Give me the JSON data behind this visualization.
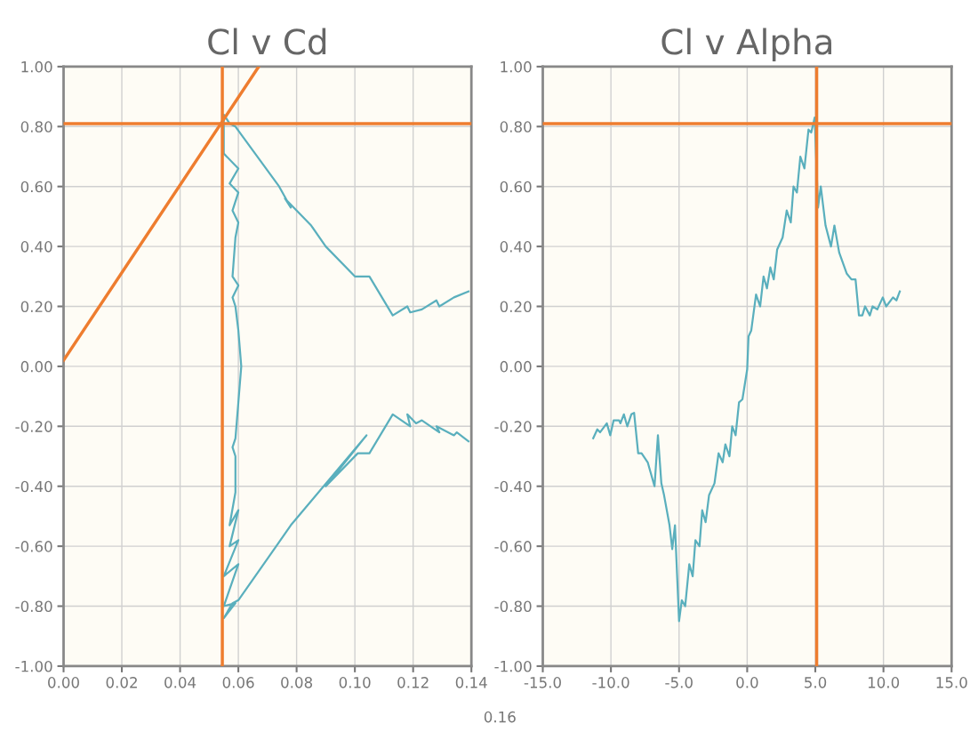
{
  "chart_data": [
    {
      "type": "line",
      "title": "Cl v Cd",
      "xlim": [
        0,
        0.14
      ],
      "ylim": [
        -1,
        1
      ],
      "xticks": [
        {
          "value": 0,
          "label": "0.00"
        },
        {
          "value": 0.02,
          "label": "0.02"
        },
        {
          "value": 0.04,
          "label": "0.04"
        },
        {
          "value": 0.06,
          "label": "0.06"
        },
        {
          "value": 0.08,
          "label": "0.08"
        },
        {
          "value": 0.1,
          "label": "0.10"
        },
        {
          "value": 0.12,
          "label": "0.12"
        },
        {
          "value": 0.14,
          "label": "0.14"
        }
      ],
      "yticks": [
        {
          "value": -1,
          "label": "-1.00"
        },
        {
          "value": -0.8,
          "label": "-0.80"
        },
        {
          "value": -0.6,
          "label": "-0.60"
        },
        {
          "value": -0.4,
          "label": "-0.40"
        },
        {
          "value": -0.2,
          "label": "-0.20"
        },
        {
          "value": 0,
          "label": "0.00"
        },
        {
          "value": 0.2,
          "label": "0.20"
        },
        {
          "value": 0.4,
          "label": "0.40"
        },
        {
          "value": 0.6,
          "label": "0.60"
        },
        {
          "value": 0.8,
          "label": "0.80"
        },
        {
          "value": 1,
          "label": "1.00"
        }
      ],
      "grid": true,
      "marker": "none",
      "line_style": "solid",
      "series": [
        {
          "color": "#5aafbd",
          "x": [
            0.139,
            0.135,
            0.134,
            0.128,
            0.129,
            0.123,
            0.121,
            0.118,
            0.119,
            0.113,
            0.105,
            0.101,
            0.09,
            0.104,
            0.078,
            0.073,
            0.06,
            0.058,
            0.055,
            0.059,
            0.055,
            0.06,
            0.055,
            0.06,
            0.057,
            0.06,
            0.057,
            0.059,
            0.059,
            0.058,
            0.059,
            0.06,
            0.061,
            0.06,
            0.059,
            0.058,
            0.06,
            0.058,
            0.059,
            0.06,
            0.058,
            0.06,
            0.057,
            0.06,
            0.055,
            0.055,
            0.055,
            0.057,
            0.059,
            0.074,
            0.078,
            0.076,
            0.085,
            0.09,
            0.1,
            0.105,
            0.113,
            0.118,
            0.119,
            0.123,
            0.128,
            0.129,
            0.134,
            0.139
          ],
          "values": [
            -0.25,
            -0.22,
            -0.23,
            -0.2,
            -0.22,
            -0.18,
            -0.19,
            -0.16,
            -0.2,
            -0.16,
            -0.29,
            -0.29,
            -0.4,
            -0.23,
            -0.53,
            -0.6,
            -0.78,
            -0.79,
            -0.84,
            -0.79,
            -0.8,
            -0.66,
            -0.7,
            -0.58,
            -0.6,
            -0.48,
            -0.53,
            -0.42,
            -0.3,
            -0.27,
            -0.24,
            -0.12,
            0.0,
            0.12,
            0.2,
            0.23,
            0.27,
            0.3,
            0.43,
            0.48,
            0.52,
            0.58,
            0.61,
            0.66,
            0.71,
            0.8,
            0.84,
            0.81,
            0.8,
            0.6,
            0.53,
            0.56,
            0.47,
            0.4,
            0.3,
            0.3,
            0.17,
            0.2,
            0.18,
            0.19,
            0.22,
            0.2,
            0.23,
            0.25
          ]
        },
        {
          "color": "#ee7d2f",
          "x": [
            0,
            0.067
          ],
          "values": [
            0.02,
            1.0
          ]
        }
      ],
      "ref_lines": [
        {
          "axis": "y",
          "value": 0.81,
          "color": "#ee7d2f"
        },
        {
          "axis": "x",
          "value": 0.0545,
          "color": "#ee7d2f"
        }
      ],
      "annotations": [
        "0.16"
      ]
    },
    {
      "type": "line",
      "title": "Cl v Alpha",
      "xlim": [
        -15,
        15
      ],
      "ylim": [
        -1,
        1
      ],
      "xticks": [
        {
          "value": -15,
          "label": "-15.0"
        },
        {
          "value": -10,
          "label": "-10.0"
        },
        {
          "value": -5,
          "label": "-5.0"
        },
        {
          "value": 0,
          "label": "0.0"
        },
        {
          "value": 5,
          "label": "5.0"
        },
        {
          "value": 10,
          "label": "10.0"
        },
        {
          "value": 15,
          "label": "15.0"
        }
      ],
      "yticks": [
        {
          "value": -1,
          "label": "-1.00"
        },
        {
          "value": -0.8,
          "label": "-0.80"
        },
        {
          "value": -0.6,
          "label": "-0.60"
        },
        {
          "value": -0.4,
          "label": "-0.40"
        },
        {
          "value": -0.2,
          "label": "-0.20"
        },
        {
          "value": 0,
          "label": "0.00"
        },
        {
          "value": 0.2,
          "label": "0.20"
        },
        {
          "value": 0.4,
          "label": "0.40"
        },
        {
          "value": 0.6,
          "label": "0.60"
        },
        {
          "value": 0.8,
          "label": "0.80"
        },
        {
          "value": 1,
          "label": "1.00"
        }
      ],
      "grid": true,
      "marker": "none",
      "line_style": "solid",
      "series": [
        {
          "color": "#5aafbd",
          "x": [
            -11.3,
            -11.0,
            -10.8,
            -10.3,
            -10.05,
            -9.8,
            -9.4,
            -9.3,
            -9.05,
            -8.8,
            -8.5,
            -8.3,
            -8.0,
            -7.75,
            -7.3,
            -6.8,
            -6.55,
            -6.3,
            -6.1,
            -5.7,
            -5.5,
            -5.3,
            -5.0,
            -4.8,
            -4.55,
            -4.25,
            -4.0,
            -3.8,
            -3.5,
            -3.3,
            -3.05,
            -2.8,
            -2.4,
            -2.1,
            -1.8,
            -1.6,
            -1.3,
            -1.1,
            -0.85,
            -0.6,
            -0.35,
            0.0,
            0.1,
            0.3,
            0.65,
            0.95,
            1.2,
            1.45,
            1.7,
            1.95,
            2.2,
            2.6,
            2.9,
            3.2,
            3.4,
            3.65,
            3.9,
            4.2,
            4.5,
            4.7,
            4.95,
            5.2,
            5.4,
            5.75,
            6.15,
            6.4,
            6.75,
            7.3,
            7.65,
            7.95,
            8.2,
            8.45,
            8.65,
            9.0,
            9.2,
            9.55,
            9.95,
            10.2,
            10.7,
            10.95,
            11.2
          ],
          "values": [
            -0.24,
            -0.21,
            -0.22,
            -0.19,
            -0.23,
            -0.18,
            -0.18,
            -0.19,
            -0.16,
            -0.2,
            -0.16,
            -0.155,
            -0.29,
            -0.29,
            -0.32,
            -0.4,
            -0.23,
            -0.39,
            -0.43,
            -0.53,
            -0.61,
            -0.53,
            -0.85,
            -0.78,
            -0.8,
            -0.66,
            -0.7,
            -0.58,
            -0.6,
            -0.48,
            -0.52,
            -0.43,
            -0.39,
            -0.29,
            -0.32,
            -0.26,
            -0.3,
            -0.2,
            -0.23,
            -0.12,
            -0.11,
            -0.01,
            0.1,
            0.12,
            0.24,
            0.2,
            0.3,
            0.26,
            0.33,
            0.29,
            0.39,
            0.43,
            0.52,
            0.48,
            0.6,
            0.58,
            0.7,
            0.66,
            0.79,
            0.78,
            0.83,
            0.53,
            0.6,
            0.47,
            0.4,
            0.47,
            0.38,
            0.31,
            0.29,
            0.29,
            0.17,
            0.17,
            0.2,
            0.17,
            0.2,
            0.19,
            0.23,
            0.2,
            0.23,
            0.22,
            0.25
          ]
        }
      ],
      "ref_lines": [
        {
          "axis": "y",
          "value": 0.81,
          "color": "#ee7d2f"
        },
        {
          "axis": "x",
          "value": 5.1,
          "color": "#ee7d2f"
        }
      ]
    }
  ]
}
